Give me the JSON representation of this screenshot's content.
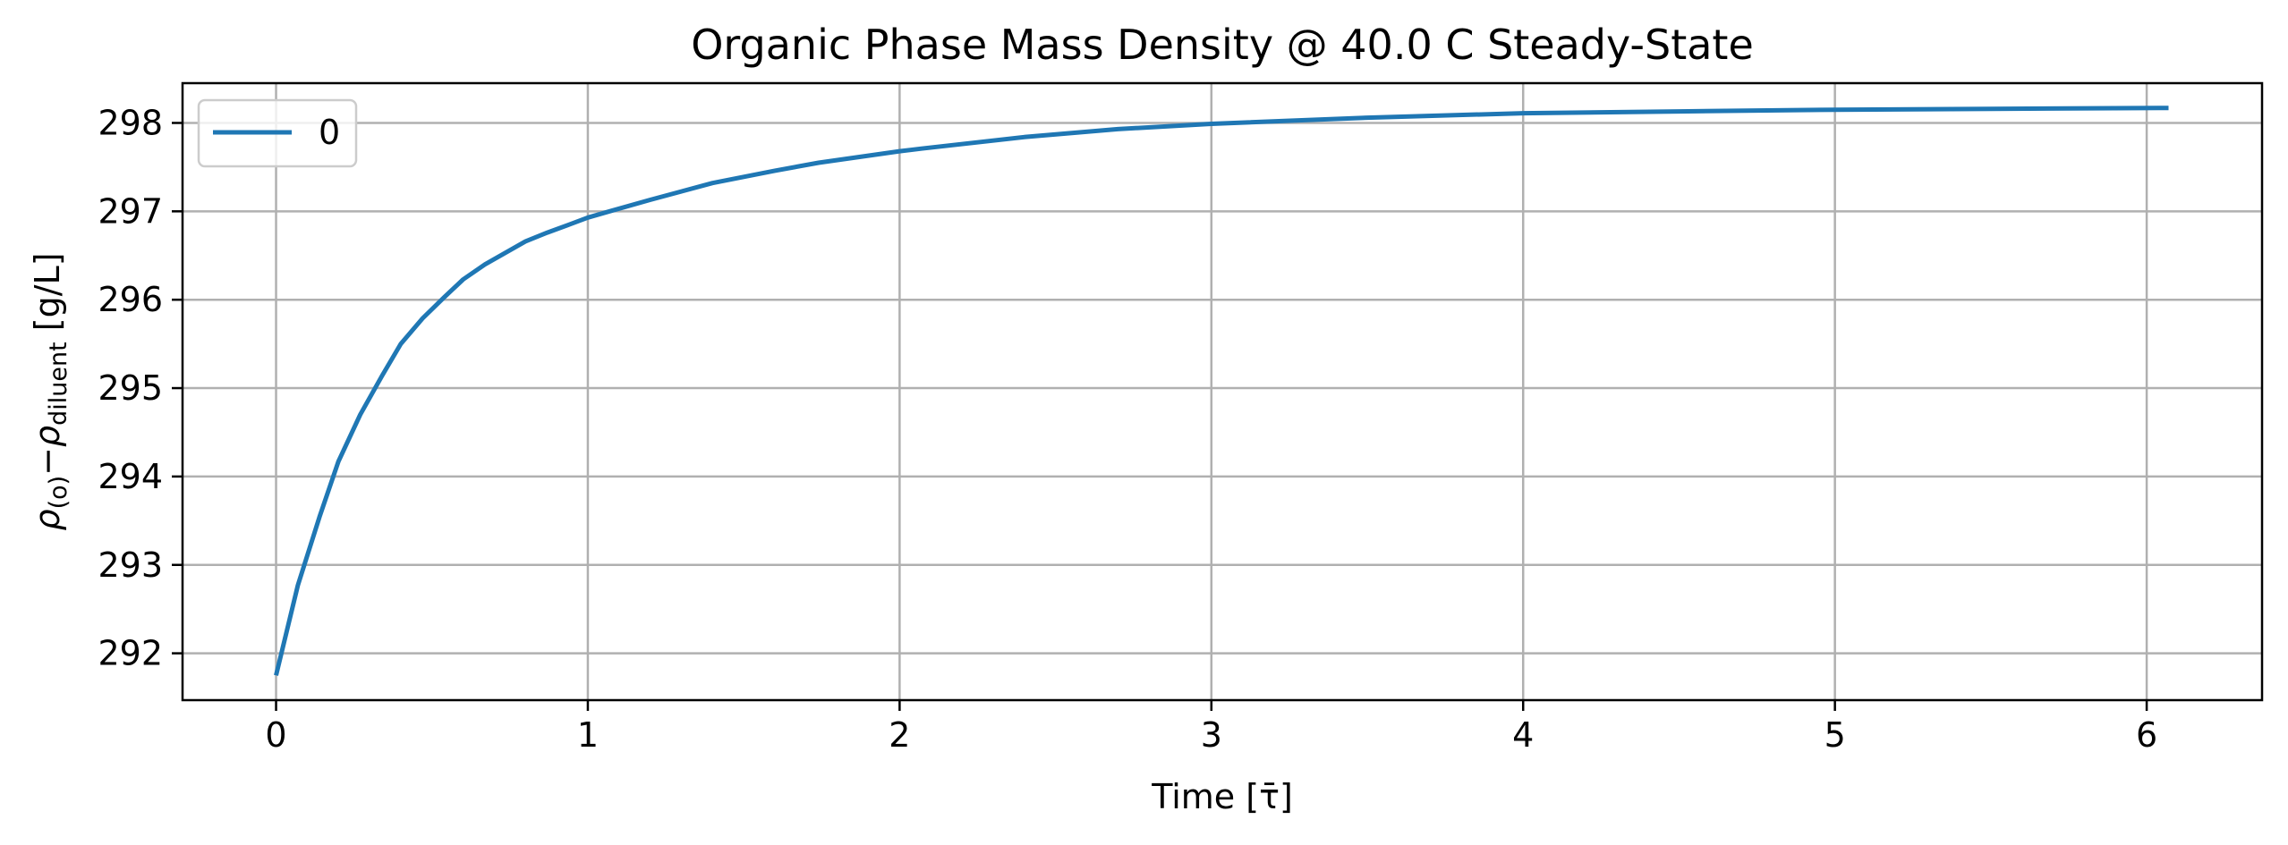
{
  "chart_data": {
    "type": "line",
    "title": "Organic Phase Mass Density @ 40.0 C Steady-State",
    "xlabel": "Time [τ̄]",
    "ylabel": {
      "rho": "ρ",
      "sub1": "(o)",
      "minus": "−",
      "sub2": "diluent",
      "unit": " [g/L]"
    },
    "xlim": [
      -0.3,
      6.37
    ],
    "ylim": [
      291.47,
      298.45
    ],
    "xticks": [
      0,
      1,
      2,
      3,
      4,
      5,
      6
    ],
    "yticks": [
      292,
      293,
      294,
      295,
      296,
      297,
      298
    ],
    "grid": true,
    "legend": {
      "position": "top-left",
      "entries": [
        "0"
      ]
    },
    "series": [
      {
        "name": "0",
        "color": "#1f77b4",
        "x": [
          0,
          0.07,
          0.14,
          0.2,
          0.27,
          0.34,
          0.4,
          0.47,
          0.54,
          0.6,
          0.67,
          0.74,
          0.8,
          0.87,
          0.94,
          1.0,
          1.07,
          1.2,
          1.4,
          1.6,
          1.74,
          2.0,
          2.07,
          2.4,
          2.7,
          3.0,
          3.5,
          4.0,
          4.5,
          5.0,
          5.5,
          6.07
        ],
        "y": [
          291.75,
          292.77,
          293.55,
          294.17,
          294.7,
          295.14,
          295.5,
          295.79,
          296.03,
          296.23,
          296.4,
          296.54,
          296.66,
          296.76,
          296.85,
          296.93,
          297.0,
          297.13,
          297.32,
          297.46,
          297.55,
          297.68,
          297.71,
          297.84,
          297.93,
          297.99,
          298.06,
          298.11,
          298.13,
          298.15,
          298.16,
          298.17
        ]
      }
    ]
  }
}
